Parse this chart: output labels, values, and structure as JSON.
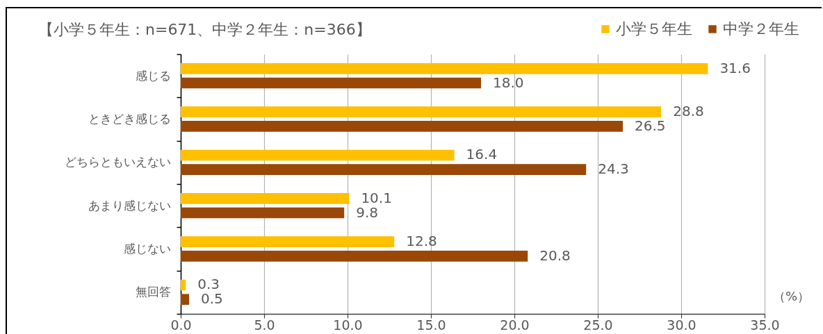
{
  "chart_data": {
    "type": "bar",
    "orientation": "horizontal",
    "title": "【小学５年生：n=671、中学２年生：n=366】",
    "xlabel": "（%）",
    "categories": [
      "感じる",
      "ときどき感じる",
      "どちらともいえない",
      "あまり感じない",
      "感じない",
      "無回答"
    ],
    "series": [
      {
        "name": "小学５年生",
        "color": "#ffc000",
        "values": [
          31.6,
          28.8,
          16.4,
          10.1,
          12.8,
          0.3
        ],
        "value_labels": [
          "31.6",
          "28.8",
          "16.4",
          "10.1",
          "12.8",
          "0.3"
        ]
      },
      {
        "name": "中学２年生",
        "color": "#9a4807",
        "values": [
          18.0,
          26.5,
          24.3,
          9.8,
          20.8,
          0.5
        ],
        "value_labels": [
          "18.0",
          "26.5",
          "24.3",
          "9.8",
          "20.8",
          "0.5"
        ]
      }
    ],
    "xlim": [
      0,
      35
    ],
    "xticks": [
      {
        "value": 0,
        "label": "0.0"
      },
      {
        "value": 5,
        "label": "5.0"
      },
      {
        "value": 10,
        "label": "10.0"
      },
      {
        "value": 15,
        "label": "15.0"
      },
      {
        "value": 20,
        "label": "20.0"
      },
      {
        "value": 25,
        "label": "25.0"
      },
      {
        "value": 30,
        "label": "30.0"
      },
      {
        "value": 35,
        "label": "35.0"
      }
    ],
    "grid": "x",
    "legend": "top right"
  }
}
